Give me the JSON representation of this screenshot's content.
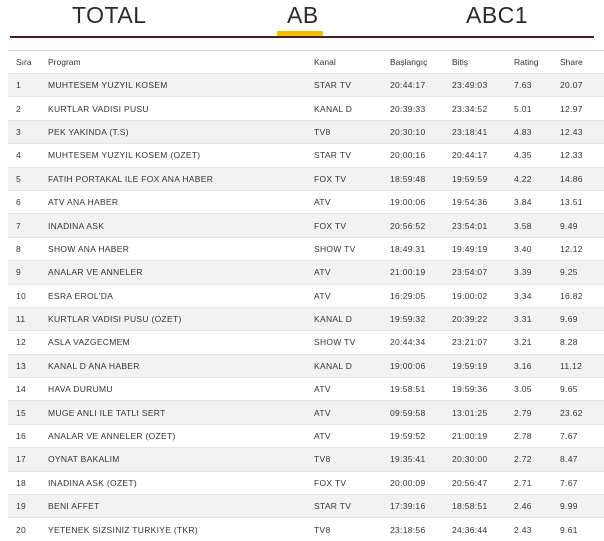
{
  "tabs": [
    {
      "label": "TOTAL"
    },
    {
      "label": "AB"
    },
    {
      "label": "ABC1"
    }
  ],
  "table": {
    "headers": {
      "sira": "Sıra",
      "program": "Program",
      "kanal": "Kanal",
      "baslangic": "Başlangıç",
      "bitis": "Bitiş",
      "rating": "Rating",
      "share": "Share"
    },
    "rows": [
      [
        "1",
        "MUHTESEM YUZYIL KOSEM",
        "STAR TV",
        "20:44:17",
        "23:49:03",
        "7.63",
        "20.07"
      ],
      [
        "2",
        "KURTLAR VADISI PUSU",
        "KANAL D",
        "20:39:33",
        "23:34:52",
        "5.01",
        "12.97"
      ],
      [
        "3",
        "PEK YAKINDA (T.S)",
        "TV8",
        "20:30:10",
        "23:18:41",
        "4.83",
        "12.43"
      ],
      [
        "4",
        "MUHTESEM YUZYIL KOSEM (OZET)",
        "STAR TV",
        "20:00:16",
        "20:44:17",
        "4.35",
        "12.33"
      ],
      [
        "5",
        "FATIH PORTAKAL ILE FOX ANA HABER",
        "FOX TV",
        "18:59:48",
        "19:59:59",
        "4.22",
        "14.86"
      ],
      [
        "6",
        "ATV ANA HABER",
        "ATV",
        "19:00:06",
        "19:54:36",
        "3.84",
        "13.51"
      ],
      [
        "7",
        "INADINA ASK",
        "FOX TV",
        "20:56:52",
        "23:54:01",
        "3.58",
        "9.49"
      ],
      [
        "8",
        "SHOW ANA HABER",
        "SHOW TV",
        "18:49:31",
        "19:49:19",
        "3.40",
        "12.12"
      ],
      [
        "9",
        "ANALAR VE ANNELER",
        "ATV",
        "21:00:19",
        "23:54:07",
        "3.39",
        "9.25"
      ],
      [
        "10",
        "ESRA EROL'DA",
        "ATV",
        "16:29:05",
        "19:00:02",
        "3.34",
        "16.82"
      ],
      [
        "11",
        "KURTLAR VADISI PUSU (OZET)",
        "KANAL D",
        "19:59:32",
        "20:39:22",
        "3.31",
        "9.69"
      ],
      [
        "12",
        "ASLA VAZGECMEM",
        "SHOW TV",
        "20:44:34",
        "23:21:07",
        "3.21",
        "8.28"
      ],
      [
        "13",
        "KANAL D ANA HABER",
        "KANAL D",
        "19:00:06",
        "19:59:19",
        "3.16",
        "11.12"
      ],
      [
        "14",
        "HAVA DURUMU",
        "ATV",
        "19:58:51",
        "19:59:36",
        "3.05",
        "9.65"
      ],
      [
        "15",
        "MUGE ANLI ILE TATLI SERT",
        "ATV",
        "09:59:58",
        "13:01:25",
        "2.79",
        "23.62"
      ],
      [
        "16",
        "ANALAR VE ANNELER (OZET)",
        "ATV",
        "19:59:52",
        "21:00:19",
        "2.78",
        "7.67"
      ],
      [
        "17",
        "OYNAT BAKALIM",
        "TV8",
        "19:35:41",
        "20:30:00",
        "2.72",
        "8.47"
      ],
      [
        "18",
        "INADINA ASK (OZET)",
        "FOX TV",
        "20:00:09",
        "20:56:47",
        "2.71",
        "7.67"
      ],
      [
        "19",
        "BENI AFFET",
        "STAR TV",
        "17:39:16",
        "18:58:51",
        "2.46",
        "9.99"
      ],
      [
        "20",
        "YETENEK SIZSINIZ TURKIYE (TKR)",
        "TV8",
        "23:18:56",
        "24:36:44",
        "2.43",
        "9.61"
      ]
    ]
  }
}
